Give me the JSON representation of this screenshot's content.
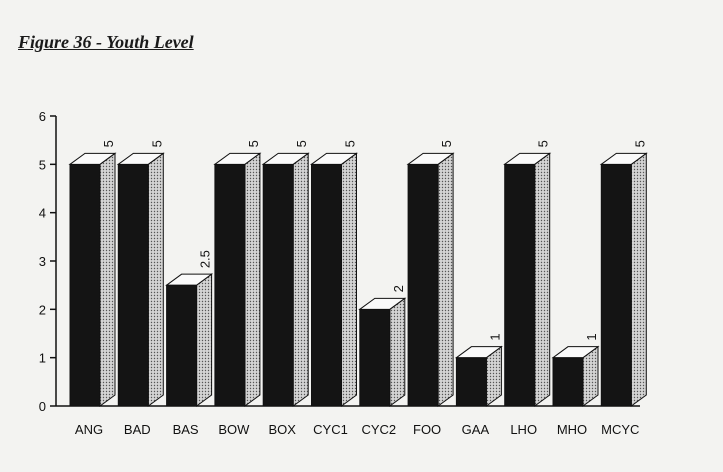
{
  "figure": {
    "title": "Figure 36 - Youth Level"
  },
  "colors": {
    "background": "#f3f3f1",
    "bar_front": "#141414",
    "bar_top": "#fafafa",
    "bar_side": "#bdbdbd",
    "axis": "#111111"
  },
  "chart_data": {
    "type": "bar",
    "title": "Figure 36 - Youth Level",
    "xlabel": "",
    "ylabel": "",
    "categories": [
      "ANG",
      "BAD",
      "BAS",
      "BOW",
      "BOX",
      "CYC1",
      "CYC2",
      "FOO",
      "GAA",
      "LHO",
      "MHO",
      "MCYC"
    ],
    "values": [
      5,
      5,
      2.5,
      5,
      5,
      5,
      2,
      5,
      1,
      5,
      1,
      5
    ],
    "data_labels": [
      "5",
      "5",
      "2.5",
      "5",
      "5",
      "5",
      "2",
      "5",
      "1",
      "5",
      "1",
      "5"
    ],
    "ylim": [
      0,
      6
    ],
    "yticks": [
      0,
      1,
      2,
      3,
      4,
      5,
      6
    ],
    "style": "3d-bar",
    "grid": false,
    "legend": "none"
  }
}
